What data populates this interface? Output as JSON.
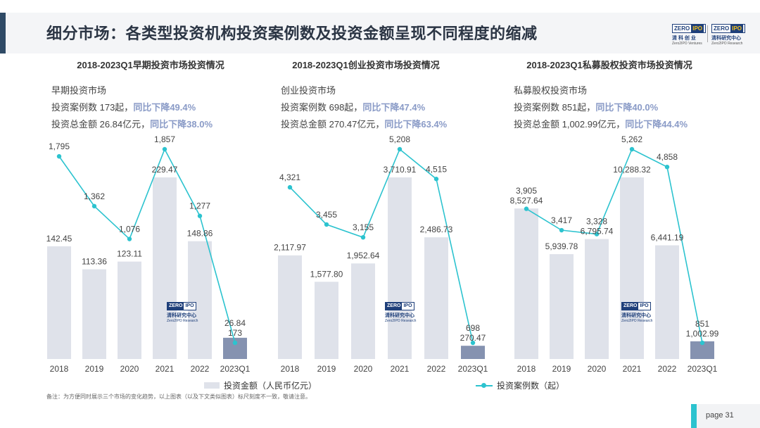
{
  "header": {
    "title": "细分市场：各类型投资机构投资案例数及投资金额呈现不同程度的缩减",
    "logo_left": {
      "text_a": "ZERO",
      "text_b": "IPO",
      "cn": "清 科 创 业",
      "en": "Zero2IPO Ventures"
    },
    "logo_right": {
      "text_a": "ZERO",
      "text_b": "IPO",
      "cn": "清科研究中心",
      "en": "Zero2IPO Research"
    }
  },
  "watermark": {
    "text_a": "ZERO",
    "text_b": "IPO",
    "cn": "清科研究中心",
    "en": "Zero2IPO Research"
  },
  "colors": {
    "bar": "#dfe2ea",
    "bar_highlight": "#8592b0",
    "line": "#2cc3cf"
  },
  "chart_data": [
    {
      "type": "bar",
      "title": "2018-2023Q1早期投资市场投资情况",
      "info": {
        "name": "早期投资市场",
        "cases_label": "投资案例数 173起，",
        "cases_yoy": "同比下降49.4%",
        "amount_label": "投资总金额 26.84亿元，",
        "amount_yoy": "同比下降38.0%"
      },
      "categories": [
        "2018",
        "2019",
        "2020",
        "2021",
        "2022",
        "2023Q1"
      ],
      "series": [
        {
          "name": "投资金额（人民币亿元）",
          "type": "bar",
          "values": [
            142.45,
            113.36,
            123.11,
            229.47,
            148.86,
            26.84
          ],
          "labels": [
            "142.45",
            "113.36",
            "123.11",
            "229.47",
            "148.86",
            "26.84"
          ]
        },
        {
          "name": "投资案例数（起）",
          "type": "line",
          "values": [
            1795,
            1362,
            1076,
            1857,
            1277,
            173
          ],
          "labels": [
            "1,795",
            "1,362",
            "1,076",
            "1,857",
            "1,277",
            "173"
          ]
        }
      ]
    },
    {
      "type": "bar",
      "title": "2018-2023Q1创业投资市场投资情况",
      "info": {
        "name": "创业投资市场",
        "cases_label": "投资案例数 698起，",
        "cases_yoy": "同比下降47.4%",
        "amount_label": "投资总金额 270.47亿元，",
        "amount_yoy": "同比下降63.4%"
      },
      "categories": [
        "2018",
        "2019",
        "2020",
        "2021",
        "2022",
        "2023Q1"
      ],
      "series": [
        {
          "name": "投资金额（人民币亿元）",
          "type": "bar",
          "values": [
            2117.97,
            1577.8,
            1952.64,
            3710.91,
            2486.73,
            270.47
          ],
          "labels": [
            "2,117.97",
            "1,577.80",
            "1,952.64",
            "3,710.91",
            "2,486.73",
            "270.47"
          ]
        },
        {
          "name": "投资案例数（起）",
          "type": "line",
          "values": [
            4321,
            3455,
            3155,
            5208,
            4515,
            698
          ],
          "labels": [
            "4,321",
            "3,455",
            "3,155",
            "5,208",
            "4,515",
            "698"
          ]
        }
      ]
    },
    {
      "type": "bar",
      "title": "2018-2023Q1私募股权投资市场投资情况",
      "info": {
        "name": "私募股权投资市场",
        "cases_label": "投资案例数 851起，",
        "cases_yoy": "同比下降40.0%",
        "amount_label": "投资总金额 1,002.99亿元，",
        "amount_yoy": "同比下降44.4%"
      },
      "categories": [
        "2018",
        "2019",
        "2020",
        "2021",
        "2022",
        "2023Q1"
      ],
      "series": [
        {
          "name": "投资金额（人民币亿元）",
          "type": "bar",
          "values": [
            8527.64,
            5939.78,
            6795.74,
            10288.32,
            6441.19,
            1002.99
          ],
          "labels": [
            "8,527.64",
            "5,939.78",
            "6,795.74",
            "10,288.32",
            "6,441.19",
            "1,002.99"
          ]
        },
        {
          "name": "投资案例数（起）",
          "type": "line",
          "values": [
            3905,
            3417,
            3328,
            5262,
            4858,
            851
          ],
          "labels": [
            "3,905",
            "3,417",
            "3,328",
            "5,262",
            "4,858",
            "851"
          ]
        }
      ]
    }
  ],
  "legend": {
    "bar_label": "投资金额（人民币亿元）",
    "line_label": "投资案例数（起）"
  },
  "note": "备注：为方便同时展示三个市场的变化趋势，以上图表（以及下文类似图表）标尺刻度不一致，敬请注意。",
  "page": {
    "label": "page 31"
  }
}
